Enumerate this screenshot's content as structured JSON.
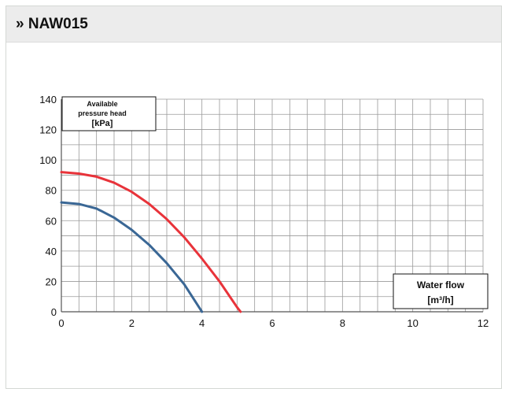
{
  "header": {
    "title": "» NAW015"
  },
  "chart_data": {
    "type": "line",
    "ylabel_lines": [
      "Available",
      "pressure head",
      "[kPa]"
    ],
    "xlabel_lines": [
      "Water flow",
      "[m³/h]"
    ],
    "xlim": [
      0,
      12
    ],
    "ylim": [
      0,
      140
    ],
    "x_ticks": [
      0,
      2,
      4,
      6,
      8,
      10,
      12
    ],
    "y_ticks": [
      0,
      20,
      40,
      60,
      80,
      100,
      120,
      140
    ],
    "x_minor_step": 0.5,
    "y_minor_step": 10,
    "grid": true,
    "legend": "none",
    "series": [
      {
        "color": "#e8333a",
        "x": [
          0,
          0.5,
          1,
          1.5,
          2,
          2.5,
          3,
          3.5,
          4,
          4.5,
          5,
          5.1
        ],
        "y": [
          92,
          91,
          89,
          85,
          79,
          71,
          61,
          49,
          35,
          20,
          3,
          0
        ]
      },
      {
        "color": "#3a6795",
        "x": [
          0,
          0.5,
          1,
          1.5,
          2,
          2.5,
          3,
          3.5,
          4
        ],
        "y": [
          72,
          71,
          68,
          62,
          54,
          44,
          32,
          18,
          0
        ]
      }
    ]
  }
}
